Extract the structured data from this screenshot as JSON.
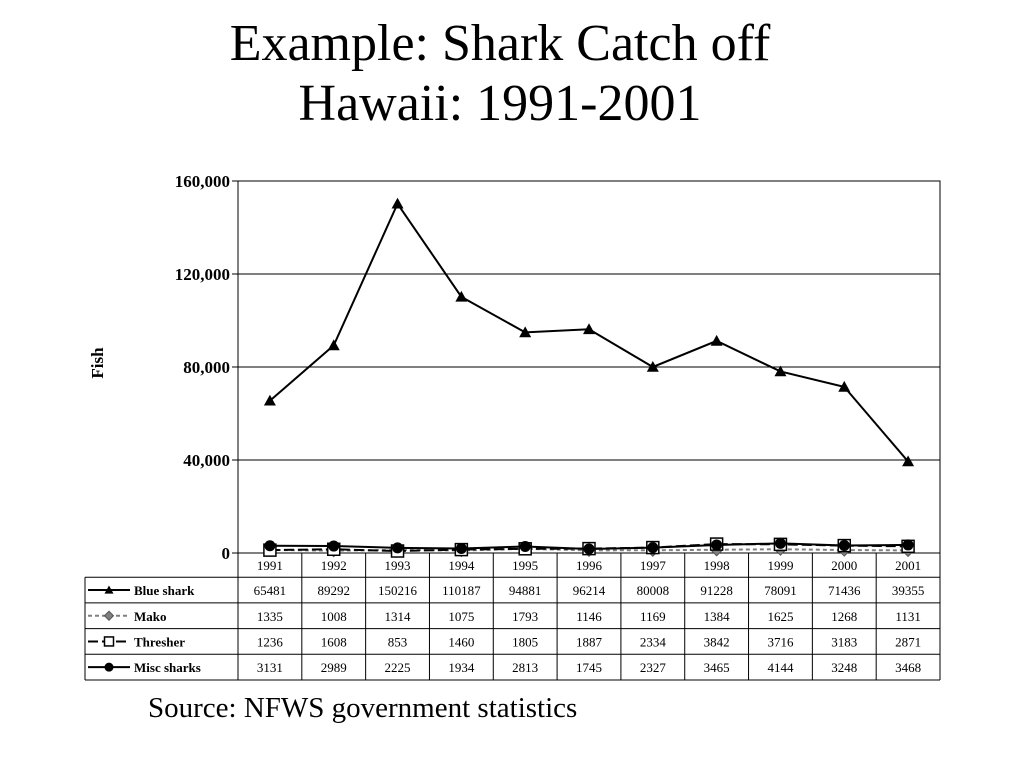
{
  "slide": {
    "title_line1": "Example: Shark Catch off",
    "title_line2": "Hawaii: 1991-2001",
    "source": "Source:  NFWS government statistics"
  },
  "chart_data": {
    "type": "line",
    "ylabel": "Fish",
    "ylim": [
      0,
      160000
    ],
    "yticks": [
      0,
      40000,
      80000,
      120000,
      160000
    ],
    "ytick_labels": [
      "0",
      "40,000",
      "80,000",
      "120,000",
      "160,000"
    ],
    "grid": true,
    "legend_placement": "data table rows below chart",
    "categories": [
      "1991",
      "1992",
      "1993",
      "1994",
      "1995",
      "1996",
      "1997",
      "1998",
      "1999",
      "2000",
      "2001"
    ],
    "series": [
      {
        "name": "Blue shark",
        "marker": "triangle",
        "dash": "solid",
        "color": "#000000",
        "values": [
          65481,
          89292,
          150216,
          110187,
          94881,
          96214,
          80008,
          91228,
          78091,
          71436,
          39355
        ]
      },
      {
        "name": "Mako",
        "marker": "diamond",
        "dash": "dashed",
        "color": "#808080",
        "values": [
          1335,
          1008,
          1314,
          1075,
          1793,
          1146,
          1169,
          1384,
          1625,
          1268,
          1131
        ]
      },
      {
        "name": "Thresher",
        "marker": "square-open",
        "dash": "long-dash",
        "color": "#000000",
        "values": [
          1236,
          1608,
          853,
          1460,
          1805,
          1887,
          2334,
          3842,
          3716,
          3183,
          2871
        ]
      },
      {
        "name": "Misc sharks",
        "marker": "circle",
        "dash": "solid",
        "color": "#000000",
        "values": [
          3131,
          2989,
          2225,
          1934,
          2813,
          1745,
          2327,
          3465,
          4144,
          3248,
          3468
        ]
      }
    ]
  }
}
